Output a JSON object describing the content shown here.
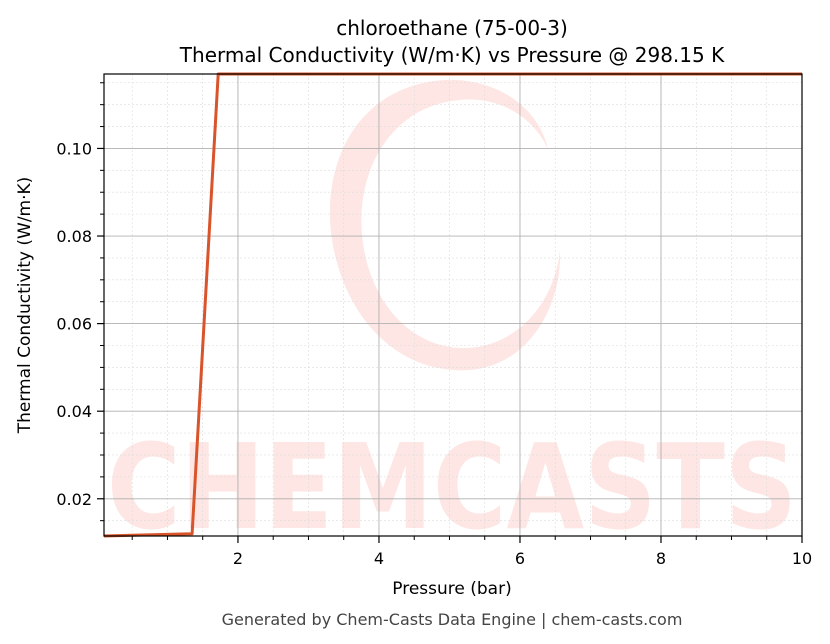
{
  "chart_data": {
    "type": "line",
    "title": "chloroethane (75-00-3)",
    "subtitle": "Thermal Conductivity (W/m·K) vs Pressure @ 298.15 K",
    "xlabel": "Pressure (bar)",
    "ylabel": "Thermal Conductivity (W/m·K)",
    "xlim": [
      0.1,
      10
    ],
    "ylim": [
      0.0115,
      0.117
    ],
    "x_ticks": [
      2,
      4,
      6,
      8,
      10
    ],
    "x_tick_labels": [
      "2",
      "4",
      "6",
      "8",
      "10"
    ],
    "y_ticks": [
      0.02,
      0.04,
      0.06,
      0.08,
      0.1
    ],
    "y_tick_labels": [
      "0.02",
      "0.04",
      "0.06",
      "0.08",
      "0.10"
    ],
    "grid": true,
    "series": [
      {
        "color": "#d9542a",
        "x": [
          0.1,
          1.35,
          1.72,
          10
        ],
        "y": [
          0.0115,
          0.012,
          0.117,
          0.117
        ]
      }
    ]
  },
  "watermark": {
    "text": "CHEMCASTS",
    "color": "#fde6e3"
  },
  "footer": "Generated by Chem-Casts Data Engine | chem-casts.com"
}
